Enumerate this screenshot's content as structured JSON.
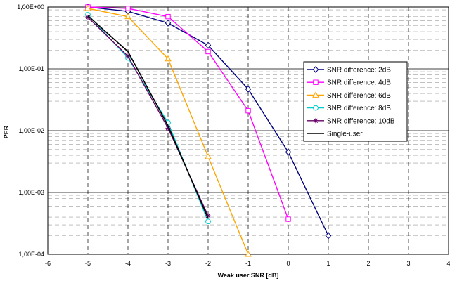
{
  "chart_data": {
    "type": "line",
    "xlabel": "Weak user SNR [dB]",
    "ylabel": "PER",
    "xlim": [
      -6,
      4
    ],
    "ylim": [
      0.0001,
      1
    ],
    "yscale": "log",
    "x_ticks": [
      "-6",
      "-5",
      "-4",
      "-3",
      "-2",
      "-1",
      "0",
      "1",
      "2",
      "3",
      "4"
    ],
    "y_ticks": [
      "1,00E+00",
      "1,00E-01",
      "1,00E-02",
      "1,00E-03",
      "1,00E-04"
    ],
    "grid": true,
    "legend_position": "right",
    "series": [
      {
        "name": "SNR difference: 2dB",
        "color": "#000080",
        "marker": "diamond",
        "x": [
          -5,
          -4,
          -3,
          -2,
          -1,
          0,
          1
        ],
        "y": [
          1.0,
          0.85,
          0.55,
          0.24,
          0.047,
          0.0045,
          0.0002
        ]
      },
      {
        "name": "SNR difference: 4dB",
        "color": "#ff00ff",
        "marker": "square",
        "x": [
          -5,
          -4,
          -3,
          -2,
          -1,
          0
        ],
        "y": [
          1.0,
          0.95,
          0.7,
          0.19,
          0.021,
          0.00037
        ]
      },
      {
        "name": "SNR difference: 6dB",
        "color": "#ffa500",
        "marker": "triangle",
        "x": [
          -5,
          -4,
          -3,
          -2,
          -1
        ],
        "y": [
          0.95,
          0.7,
          0.145,
          0.0038,
          0.0001
        ]
      },
      {
        "name": "SNR difference: 8dB",
        "color": "#00cccc",
        "marker": "circle",
        "x": [
          -5,
          -4,
          -3,
          -2
        ],
        "y": [
          0.75,
          0.15,
          0.0135,
          0.00034
        ]
      },
      {
        "name": "SNR difference: 10dB",
        "color": "#660066",
        "marker": "star",
        "x": [
          -5,
          -4,
          -3,
          -2
        ],
        "y": [
          0.68,
          0.16,
          0.011,
          0.00042
        ]
      },
      {
        "name": "Single-user",
        "color": "#000000",
        "marker": "none",
        "x": [
          -5,
          -4,
          -3,
          -2
        ],
        "y": [
          0.72,
          0.19,
          0.012,
          0.00038
        ]
      }
    ]
  }
}
